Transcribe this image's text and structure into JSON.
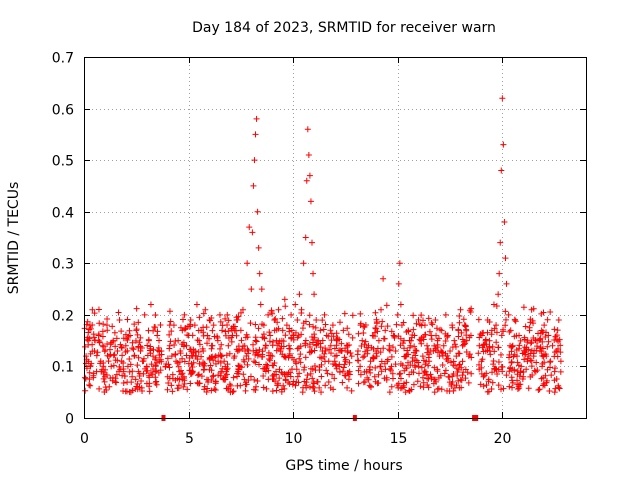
{
  "chart_data": {
    "type": "scatter",
    "title": "Day 184 of 2023, SRMTID for receiver warn",
    "xlabel": "GPS time / hours",
    "ylabel": "SRMTID / TECUs",
    "xlim": [
      0,
      24
    ],
    "ylim": [
      0,
      0.7
    ],
    "xticks": [
      0,
      5,
      10,
      15,
      20
    ],
    "yticks": [
      0,
      0.1,
      0.2,
      0.3,
      0.4,
      0.5,
      0.6,
      0.7
    ],
    "xtick_labels": [
      "0",
      "5",
      "10",
      "15",
      "20"
    ],
    "ytick_labels": [
      "0",
      "0.1",
      "0.2",
      "0.3",
      "0.4",
      "0.5",
      "0.6",
      "0.7"
    ],
    "grid": true,
    "marker": "plus",
    "color": "#ff0000",
    "baseline_range": [
      0.05,
      0.22
    ],
    "data_gaps_x": [
      3.8,
      12.95,
      18.65,
      18.75
    ],
    "series": [
      {
        "name": "SRMTID",
        "x": [
          0.1,
          0.2,
          0.3,
          0.4,
          0.5,
          0.6,
          0.7,
          0.8,
          0.9,
          1.0,
          1.1,
          1.2,
          1.3,
          1.4,
          1.5,
          1.6,
          1.7,
          1.8,
          1.9,
          2.0,
          2.1,
          2.2,
          2.3,
          2.4,
          2.5,
          2.6,
          2.7,
          2.8,
          2.9,
          3.0,
          3.1,
          3.2,
          3.3,
          3.4,
          3.5,
          3.6,
          3.7,
          3.9,
          4.0,
          4.1,
          4.2,
          4.3,
          4.4,
          4.5,
          4.6,
          4.7,
          4.8,
          4.9,
          5.0,
          5.1,
          5.2,
          5.3,
          5.4,
          5.5,
          5.6,
          5.7,
          5.8,
          5.9,
          6.0,
          6.1,
          6.2,
          6.3,
          6.4,
          6.5,
          6.6,
          6.7,
          6.8,
          6.9,
          7.0,
          7.1,
          7.2,
          7.3,
          7.4,
          7.5,
          7.6,
          7.7,
          7.8,
          7.9,
          8.0,
          8.05,
          8.1,
          8.15,
          8.2,
          8.25,
          8.3,
          8.35,
          8.4,
          8.45,
          8.5,
          8.6,
          8.7,
          8.8,
          8.9,
          9.0,
          9.1,
          9.2,
          9.3,
          9.4,
          9.5,
          9.6,
          9.7,
          9.8,
          9.9,
          10.0,
          10.1,
          10.2,
          10.3,
          10.4,
          10.5,
          10.6,
          10.65,
          10.7,
          10.75,
          10.8,
          10.85,
          10.9,
          10.95,
          11.0,
          11.1,
          11.2,
          11.3,
          11.4,
          11.5,
          11.6,
          11.7,
          11.8,
          11.9,
          12.0,
          12.1,
          12.2,
          12.3,
          12.4,
          12.5,
          12.6,
          12.7,
          12.8,
          13.1,
          13.2,
          13.3,
          13.4,
          13.5,
          13.6,
          13.7,
          13.8,
          13.9,
          14.0,
          14.1,
          14.2,
          14.3,
          14.4,
          14.5,
          14.6,
          14.7,
          14.8,
          14.9,
          15.0,
          15.05,
          15.1,
          15.15,
          15.2,
          15.3,
          15.4,
          15.5,
          15.6,
          15.7,
          15.8,
          15.9,
          16.0,
          16.1,
          16.2,
          16.3,
          16.4,
          16.5,
          16.6,
          16.7,
          16.8,
          16.9,
          17.0,
          17.1,
          17.2,
          17.3,
          17.4,
          17.5,
          17.6,
          17.7,
          17.8,
          17.9,
          18.0,
          18.1,
          18.2,
          18.3,
          18.4,
          18.5,
          18.9,
          19.0,
          19.1,
          19.2,
          19.3,
          19.4,
          19.5,
          19.6,
          19.7,
          19.8,
          19.85,
          19.9,
          19.95,
          20.0,
          20.05,
          20.1,
          20.15,
          20.2,
          20.3,
          20.4,
          20.5,
          20.6,
          20.7,
          20.8,
          20.9,
          21.0,
          21.1,
          21.2,
          21.3,
          21.4,
          21.5,
          21.6,
          21.7,
          21.8,
          21.9,
          22.0,
          22.1,
          22.2,
          22.3,
          22.4,
          22.5,
          22.6,
          22.7,
          22.8
        ],
        "y": [
          0.12,
          0.15,
          0.1,
          0.21,
          0.13,
          0.09,
          0.16,
          0.11,
          0.14,
          0.08,
          0.18,
          0.12,
          0.1,
          0.15,
          0.07,
          0.13,
          0.19,
          0.11,
          0.09,
          0.14,
          0.1,
          0.16,
          0.08,
          0.12,
          0.17,
          0.09,
          0.13,
          0.11,
          0.2,
          0.1,
          0.15,
          0.22,
          0.12,
          0.09,
          0.16,
          0.11,
          0.13,
          0.1,
          0.08,
          0.14,
          0.12,
          0.18,
          0.11,
          0.15,
          0.13,
          0.17,
          0.2,
          0.14,
          0.16,
          0.19,
          0.12,
          0.18,
          0.22,
          0.15,
          0.17,
          0.13,
          0.21,
          0.16,
          0.19,
          0.14,
          0.18,
          0.12,
          0.15,
          0.2,
          0.17,
          0.11,
          0.09,
          0.14,
          0.05,
          0.16,
          0.12,
          0.19,
          0.1,
          0.17,
          0.21,
          0.13,
          0.3,
          0.37,
          0.25,
          0.36,
          0.45,
          0.5,
          0.55,
          0.58,
          0.4,
          0.33,
          0.28,
          0.22,
          0.25,
          0.18,
          0.14,
          0.2,
          0.16,
          0.12,
          0.19,
          0.15,
          0.21,
          0.13,
          0.17,
          0.23,
          0.18,
          0.14,
          0.2,
          0.16,
          0.22,
          0.19,
          0.24,
          0.21,
          0.3,
          0.35,
          0.46,
          0.56,
          0.51,
          0.47,
          0.42,
          0.34,
          0.28,
          0.24,
          0.19,
          0.15,
          0.17,
          0.13,
          0.2,
          0.16,
          0.11,
          0.14,
          0.18,
          0.12,
          0.15,
          0.1,
          0.13,
          0.17,
          0.11,
          0.14,
          0.09,
          0.12,
          0.13,
          0.1,
          0.15,
          0.12,
          0.09,
          0.14,
          0.11,
          0.16,
          0.08,
          0.12,
          0.15,
          0.21,
          0.27,
          0.17,
          0.11,
          0.14,
          0.1,
          0.16,
          0.13,
          0.2,
          0.26,
          0.3,
          0.22,
          0.18,
          0.15,
          0.12,
          0.17,
          0.14,
          0.11,
          0.16,
          0.13,
          0.1,
          0.15,
          0.12,
          0.18,
          0.14,
          0.11,
          0.16,
          0.13,
          0.19,
          0.15,
          0.12,
          0.17,
          0.14,
          0.2,
          0.16,
          0.13,
          0.18,
          0.15,
          0.12,
          0.17,
          0.21,
          0.14,
          0.18,
          0.15,
          0.12,
          0.16,
          0.14,
          0.11,
          0.08,
          0.15,
          0.19,
          0.13,
          0.17,
          0.22,
          0.18,
          0.24,
          0.28,
          0.34,
          0.48,
          0.62,
          0.53,
          0.38,
          0.31,
          0.26,
          0.2,
          0.17,
          0.14,
          0.19,
          0.12,
          0.16,
          0.1,
          0.08,
          0.13,
          0.11,
          0.17,
          0.21,
          0.12,
          0.09,
          0.15,
          0.13,
          0.1,
          0.18,
          0.12,
          0.16,
          0.11,
          0.14,
          0.09,
          0.13,
          0.19,
          0.11
        ]
      }
    ]
  }
}
